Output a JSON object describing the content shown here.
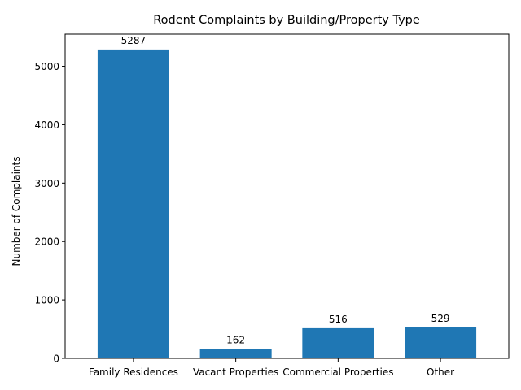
{
  "chart_data": {
    "type": "bar",
    "title": "Rodent Complaints by Building/Property Type",
    "xlabel": "",
    "ylabel": "Number of Complaints",
    "categories": [
      "Family Residences",
      "Vacant Properties",
      "Commercial Properties",
      "Other"
    ],
    "values": [
      5287,
      162,
      516,
      529
    ],
    "data_labels": [
      "5287",
      "162",
      "516",
      "529"
    ],
    "ylim": [
      0,
      5550
    ],
    "yticks": [
      0,
      1000,
      2000,
      3000,
      4000,
      5000
    ],
    "ytick_labels": [
      "0",
      "1000",
      "2000",
      "3000",
      "4000",
      "5000"
    ],
    "bar_color": "#1f77b4",
    "grid": false,
    "legend": "none"
  }
}
